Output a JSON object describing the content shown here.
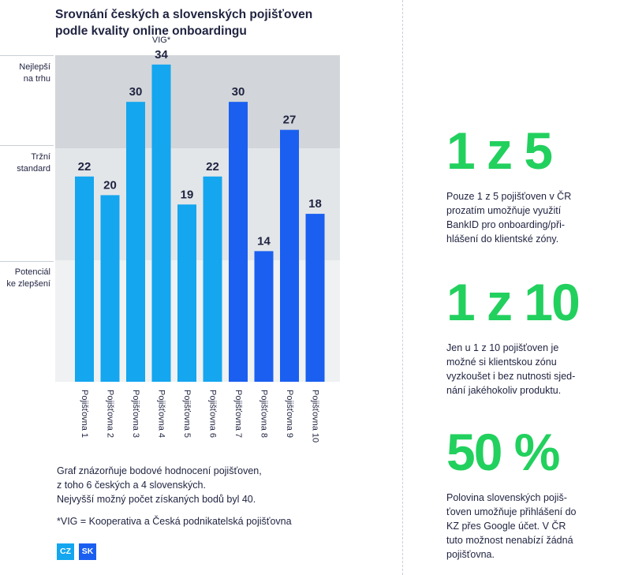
{
  "title_lines": [
    "Srovnání českých a slovenských pojišťoven",
    "podle kvality online onboardingu"
  ],
  "zones": [
    {
      "line1": "Nejlepší",
      "line2": "na trhu",
      "color": "#d2d6da"
    },
    {
      "line1": "Tržní",
      "line2": "standard",
      "color": "#e3e6e9"
    },
    {
      "line1": "Potenciál",
      "line2": "ke zlepšení",
      "color": "#eff1f2"
    }
  ],
  "chart_data": {
    "type": "bar",
    "title": "Srovnání českých a slovenských pojišťoven podle kvality online onboardingu",
    "categories": [
      "Pojišťovna 1",
      "Pojišťovna 2",
      "Pojišťovna 3",
      "Pojišťovna 4",
      "Pojišťovna 5",
      "Pojišťovna 6",
      "Pojišťovna 7",
      "Pojišťovna 8",
      "Pojišťovna 9",
      "Pojišťovna 10"
    ],
    "values": [
      22,
      20,
      30,
      34,
      19,
      22,
      30,
      14,
      27,
      18
    ],
    "country": [
      "CZ",
      "CZ",
      "CZ",
      "CZ",
      "CZ",
      "CZ",
      "SK",
      "SK",
      "SK",
      "SK"
    ],
    "zone_bounds": [
      0,
      13,
      25,
      35
    ],
    "ylim": [
      0,
      35
    ],
    "annotation": {
      "index": 3,
      "text": "VIG*"
    }
  },
  "colors": {
    "CZ": "#14a6ef",
    "SK": "#1a5ff0"
  },
  "note_lines": [
    "Graf znázorňuje bodové hodnocení pojišťoven,",
    "z toho 6 českých a 4 slovenských.",
    "Nejvyšší možný počet získaných bodů byl 40."
  ],
  "footnote": "*VIG = Kooperativa a Česká podnikatelská pojišťovna",
  "legend": {
    "cz": "CZ",
    "sk": "SK"
  },
  "stats": [
    {
      "big": "1 z 5",
      "lines": [
        "Pouze 1 z 5 pojišťoven v ČR",
        "prozatím umožňuje využití",
        "BankID pro onboarding/při-",
        "hlášení do klientské zóny."
      ]
    },
    {
      "big": "1 z 10",
      "lines": [
        "Jen u 1 z 10 pojišťoven je",
        "možné si klientskou zónu",
        "vyzkoušet i bez nutnosti sjed-",
        "nání jakéhokoliv produktu."
      ]
    },
    {
      "big": "50 %",
      "lines": [
        "Polovina slovenských pojiš-",
        "ťoven umožňuje přihlášení do",
        "KZ přes Google účet. V ČR",
        "tuto možnost nenabízí žádná",
        "pojišťovna."
      ]
    }
  ]
}
